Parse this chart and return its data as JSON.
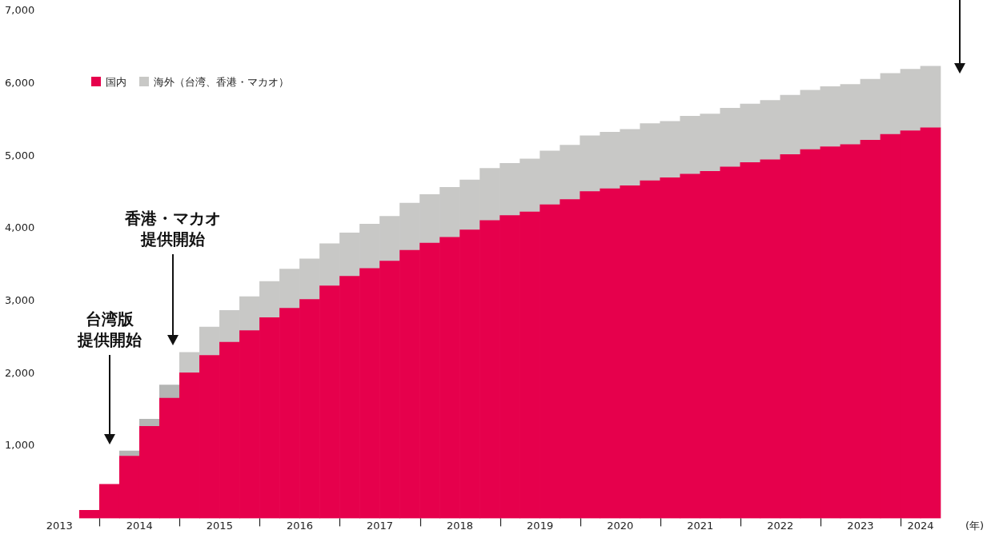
{
  "chart_data": {
    "type": "bar",
    "stacked": true,
    "x": [
      2013.875,
      2014.125,
      2014.375,
      2014.625,
      2014.875,
      2015.125,
      2015.375,
      2015.625,
      2015.875,
      2016.125,
      2016.375,
      2016.625,
      2016.875,
      2017.125,
      2017.375,
      2017.625,
      2017.875,
      2018.125,
      2018.375,
      2018.625,
      2018.875,
      2019.125,
      2019.375,
      2019.625,
      2019.875,
      2020.125,
      2020.375,
      2020.625,
      2020.875,
      2021.125,
      2021.375,
      2021.625,
      2021.875,
      2022.125,
      2022.375,
      2022.625,
      2022.875,
      2023.125,
      2023.375,
      2023.625,
      2023.875,
      2024.125,
      2024.375
    ],
    "series": [
      {
        "name": "国内",
        "color": "#e6004c",
        "values": [
          110,
          470,
          860,
          1270,
          1660,
          2010,
          2250,
          2430,
          2590,
          2770,
          2900,
          3020,
          3210,
          3340,
          3450,
          3550,
          3700,
          3800,
          3880,
          3980,
          4110,
          4180,
          4230,
          4330,
          4400,
          4510,
          4550,
          4590,
          4660,
          4700,
          4750,
          4790,
          4850,
          4910,
          4950,
          5020,
          5090,
          5130,
          5160,
          5220,
          5300,
          5350,
          5390
        ]
      },
      {
        "name": "海外（台湾、香港・マカオ）",
        "color": "#c8c8c6",
        "colors": [
          "#c8c8c6",
          "#c8c8c6",
          "#b4b5b4",
          "#b4b5b4",
          "#b4b5b4",
          "#c8c8c6",
          "#c8c8c6",
          "#c8c8c6",
          "#c8c8c6",
          "#c8c8c6",
          "#c8c8c6",
          "#c8c8c6",
          "#c8c8c6",
          "#c8c8c6",
          "#c8c8c6",
          "#c8c8c6",
          "#c8c8c6",
          "#c8c8c6",
          "#c8c8c6",
          "#c8c8c6",
          "#c8c8c6",
          "#c8c8c6",
          "#c8c8c6",
          "#c8c8c6",
          "#c8c8c6",
          "#c8c8c6",
          "#c8c8c6",
          "#c8c8c6",
          "#c8c8c6",
          "#c8c8c6",
          "#c8c8c6",
          "#c8c8c6",
          "#c8c8c6",
          "#c8c8c6",
          "#c8c8c6",
          "#c8c8c6",
          "#c8c8c6",
          "#c8c8c6",
          "#c8c8c6",
          "#c8c8c6",
          "#c8c8c6",
          "#c8c8c6",
          "#c8c8c6"
        ],
        "values": [
          null,
          null,
          70,
          100,
          180,
          280,
          390,
          440,
          470,
          500,
          540,
          560,
          580,
          600,
          610,
          620,
          650,
          670,
          690,
          690,
          720,
          720,
          730,
          740,
          750,
          770,
          780,
          780,
          790,
          780,
          800,
          790,
          810,
          810,
          820,
          820,
          820,
          830,
          830,
          840,
          840,
          850,
          850
        ]
      }
    ],
    "xlim": [
      2013.5,
      2024.5
    ],
    "xticks": [
      {
        "value": 2013.5,
        "label": "2013"
      },
      {
        "value": 2014,
        "label": null
      },
      {
        "value": 2014.5,
        "label": "2014"
      },
      {
        "value": 2015,
        "label": null
      },
      {
        "value": 2015.5,
        "label": "2015"
      },
      {
        "value": 2016,
        "label": null
      },
      {
        "value": 2016.5,
        "label": "2016"
      },
      {
        "value": 2017,
        "label": null
      },
      {
        "value": 2017.5,
        "label": "2017"
      },
      {
        "value": 2018,
        "label": null
      },
      {
        "value": 2018.5,
        "label": "2018"
      },
      {
        "value": 2019,
        "label": null
      },
      {
        "value": 2019.5,
        "label": "2019"
      },
      {
        "value": 2020,
        "label": null
      },
      {
        "value": 2020.5,
        "label": "2020"
      },
      {
        "value": 2021,
        "label": null
      },
      {
        "value": 2021.5,
        "label": "2021"
      },
      {
        "value": 2022,
        "label": null
      },
      {
        "value": 2022.5,
        "label": "2022"
      },
      {
        "value": 2023,
        "label": null
      },
      {
        "value": 2023.5,
        "label": "2023"
      },
      {
        "value": 2024,
        "label": null
      },
      {
        "value": 2024.25,
        "label": "2024"
      }
    ],
    "xlabel": "(年)",
    "ylim": [
      0,
      7000
    ],
    "yticks": [
      {
        "value": 1000,
        "label": "1,000"
      },
      {
        "value": 2000,
        "label": "2,000"
      },
      {
        "value": 3000,
        "label": "3,000"
      },
      {
        "value": 4000,
        "label": "4,000"
      },
      {
        "value": 5000,
        "label": "5,000"
      },
      {
        "value": 6000,
        "label": "6,000"
      },
      {
        "value": 7000,
        "label": "7,000"
      }
    ],
    "legend": "top left",
    "annotations": [
      "台湾版提供開始",
      "香港・マカオ提供開始"
    ]
  }
}
